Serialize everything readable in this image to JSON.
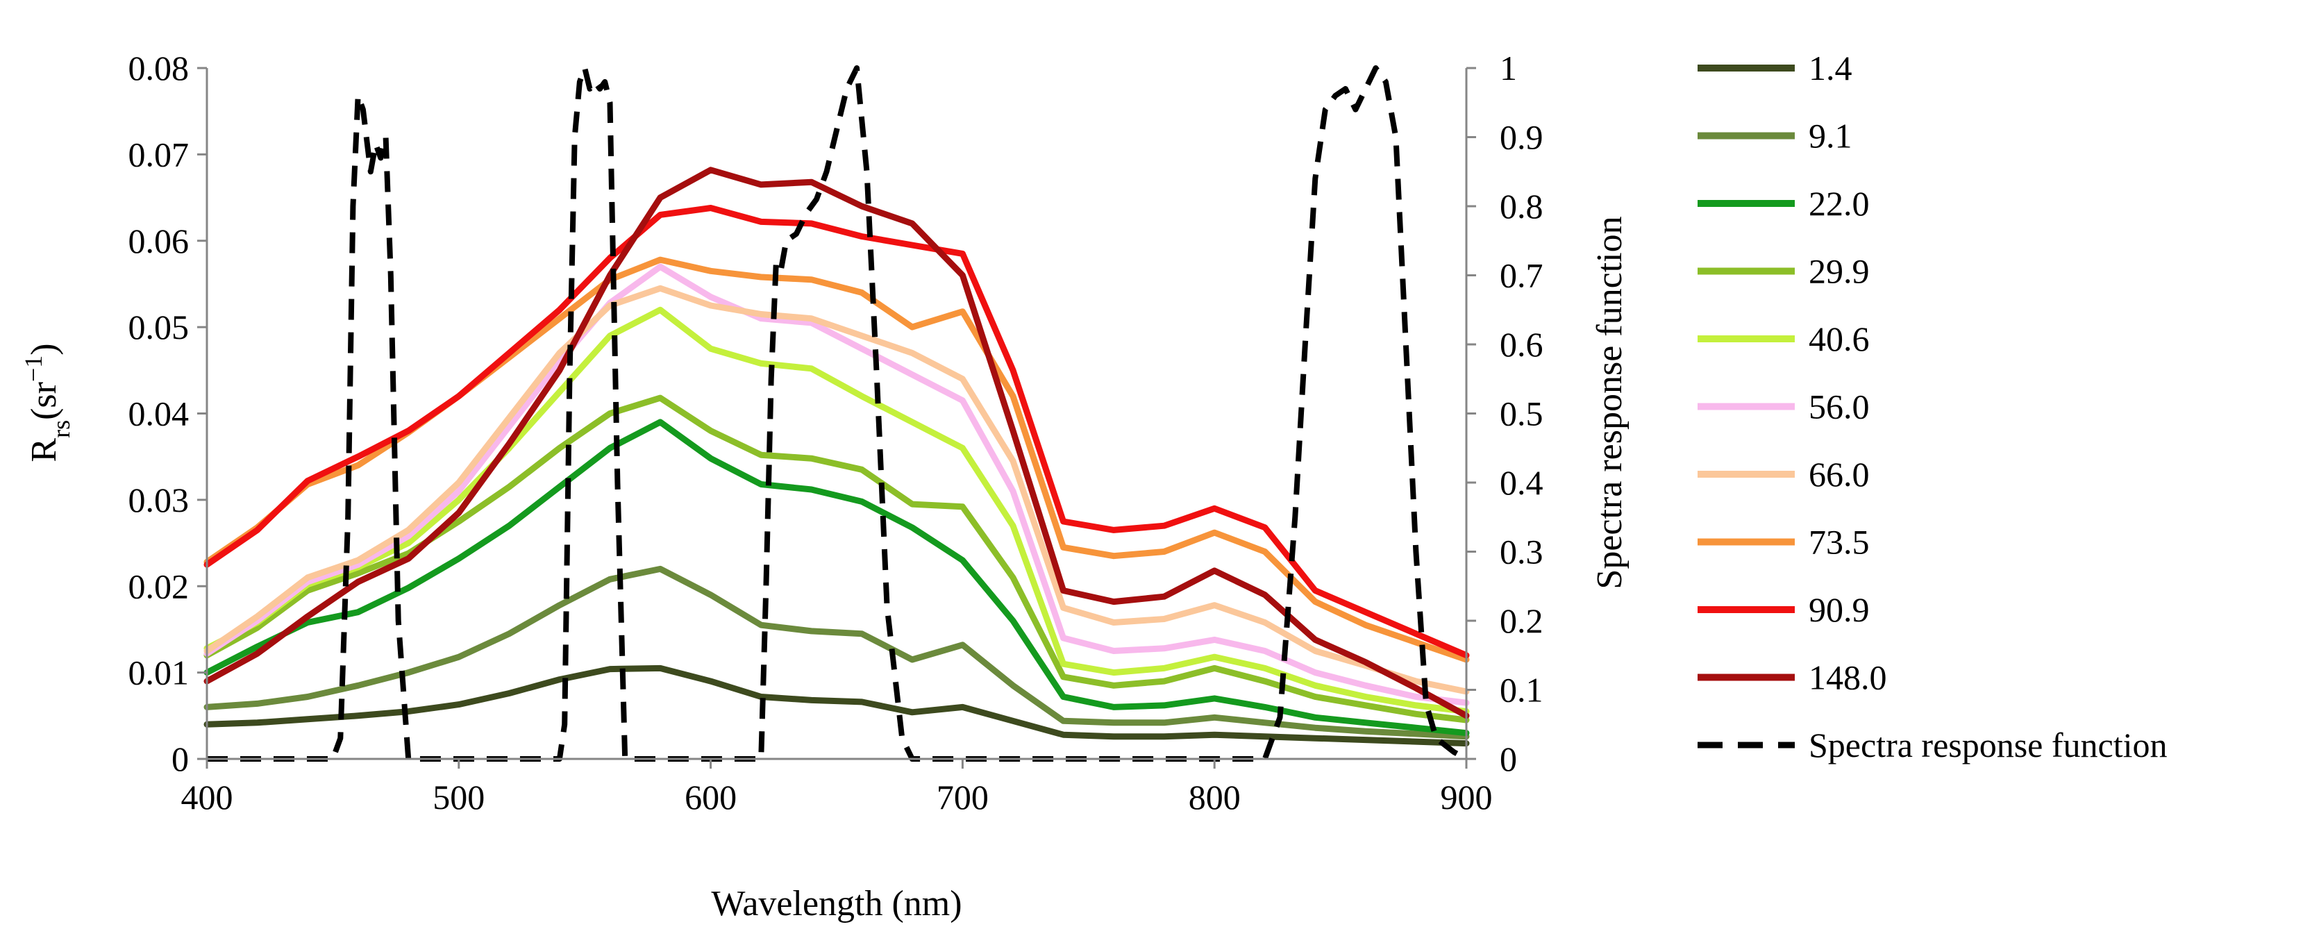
{
  "chart_data": {
    "type": "line",
    "title": "",
    "xlabel": "Wavelength (nm)",
    "ylabel": {
      "main": "R",
      "sub": "rs",
      "unit_open": "(sr",
      "unit_sup": "−1",
      "unit_close": ")"
    },
    "y2label": "Spectra response function",
    "xlim": [
      400,
      900
    ],
    "ylim": [
      0,
      0.08
    ],
    "y2lim": [
      0,
      1
    ],
    "xticks": [
      "400",
      "500",
      "600",
      "700",
      "800",
      "900"
    ],
    "yticks": [
      "0",
      "0.01",
      "0.02",
      "0.03",
      "0.04",
      "0.05",
      "0.06",
      "0.07",
      "0.08"
    ],
    "y2ticks": [
      "0",
      "0.1",
      "0.2",
      "0.3",
      "0.4",
      "0.5",
      "0.6",
      "0.7",
      "0.8",
      "0.9",
      "1"
    ],
    "grid": false,
    "legend_position": "right",
    "x": [
      400,
      420,
      440,
      460,
      480,
      500,
      520,
      540,
      560,
      580,
      600,
      620,
      640,
      660,
      680,
      700,
      720,
      740,
      760,
      780,
      800,
      820,
      840,
      860,
      880,
      900
    ],
    "series": [
      {
        "name": "1.4",
        "color": "#3d4a1e",
        "values": [
          0.004,
          0.0042,
          0.0046,
          0.005,
          0.0055,
          0.0063,
          0.0076,
          0.0092,
          0.0104,
          0.0105,
          0.009,
          0.0072,
          0.0068,
          0.0066,
          0.0054,
          0.006,
          0.0044,
          0.0028,
          0.0026,
          0.0026,
          0.0028,
          0.0026,
          0.0024,
          0.0022,
          0.002,
          0.0018
        ]
      },
      {
        "name": "9.1",
        "color": "#6b8a3c",
        "values": [
          0.006,
          0.0064,
          0.0072,
          0.0085,
          0.01,
          0.0118,
          0.0145,
          0.0178,
          0.0208,
          0.022,
          0.019,
          0.0155,
          0.0148,
          0.0145,
          0.0115,
          0.0132,
          0.0085,
          0.0044,
          0.0042,
          0.0042,
          0.0048,
          0.0042,
          0.0036,
          0.0032,
          0.0029,
          0.0026
        ]
      },
      {
        "name": "22.0",
        "color": "#149a1e",
        "values": [
          0.01,
          0.013,
          0.0158,
          0.017,
          0.0198,
          0.0232,
          0.027,
          0.0315,
          0.036,
          0.039,
          0.0348,
          0.0318,
          0.0312,
          0.0298,
          0.0268,
          0.023,
          0.016,
          0.0072,
          0.006,
          0.0062,
          0.007,
          0.006,
          0.0048,
          0.0042,
          0.0036,
          0.003
        ]
      },
      {
        "name": "29.9",
        "color": "#8cbe28",
        "values": [
          0.012,
          0.0152,
          0.0195,
          0.0215,
          0.0238,
          0.0275,
          0.0315,
          0.036,
          0.04,
          0.0418,
          0.038,
          0.0352,
          0.0348,
          0.0335,
          0.0295,
          0.0292,
          0.021,
          0.0095,
          0.0085,
          0.009,
          0.0105,
          0.009,
          0.0072,
          0.0062,
          0.0052,
          0.0045
        ]
      },
      {
        "name": "40.6",
        "color": "#c4f03c",
        "values": [
          0.0128,
          0.0158,
          0.0202,
          0.0222,
          0.025,
          0.03,
          0.036,
          0.0425,
          0.049,
          0.052,
          0.0475,
          0.0458,
          0.0452,
          0.042,
          0.039,
          0.036,
          0.027,
          0.011,
          0.01,
          0.0105,
          0.0118,
          0.0105,
          0.0085,
          0.0072,
          0.0062,
          0.0055
        ]
      },
      {
        "name": "56.0",
        "color": "#f8b8ec",
        "values": [
          0.0122,
          0.016,
          0.0205,
          0.0225,
          0.0258,
          0.031,
          0.0385,
          0.046,
          0.0528,
          0.057,
          0.0535,
          0.051,
          0.0505,
          0.0475,
          0.0445,
          0.0415,
          0.031,
          0.014,
          0.0125,
          0.0128,
          0.0138,
          0.0125,
          0.01,
          0.0085,
          0.0072,
          0.0065
        ]
      },
      {
        "name": "66.0",
        "color": "#fbc79a",
        "values": [
          0.0125,
          0.0165,
          0.021,
          0.023,
          0.0265,
          0.032,
          0.0395,
          0.047,
          0.0525,
          0.0545,
          0.0525,
          0.0515,
          0.051,
          0.049,
          0.047,
          0.044,
          0.0345,
          0.0175,
          0.0158,
          0.0162,
          0.0178,
          0.0158,
          0.0125,
          0.0108,
          0.009,
          0.0078
        ]
      },
      {
        "name": "73.5",
        "color": "#f7943a",
        "values": [
          0.0228,
          0.0268,
          0.0318,
          0.034,
          0.0378,
          0.042,
          0.0465,
          0.051,
          0.0555,
          0.0578,
          0.0565,
          0.0558,
          0.0555,
          0.054,
          0.05,
          0.0518,
          0.042,
          0.0245,
          0.0235,
          0.024,
          0.0262,
          0.024,
          0.0182,
          0.0155,
          0.0135,
          0.0115
        ]
      },
      {
        "name": "90.9",
        "color": "#f01010",
        "values": [
          0.0225,
          0.0265,
          0.0322,
          0.035,
          0.038,
          0.042,
          0.047,
          0.052,
          0.058,
          0.063,
          0.0638,
          0.0622,
          0.062,
          0.0605,
          0.0595,
          0.0585,
          0.045,
          0.0275,
          0.0265,
          0.027,
          0.029,
          0.0268,
          0.0195,
          0.017,
          0.0145,
          0.012
        ]
      },
      {
        "name": "148.0",
        "color": "#a50e0e",
        "values": [
          0.009,
          0.0122,
          0.0165,
          0.0205,
          0.0232,
          0.0285,
          0.0365,
          0.045,
          0.056,
          0.065,
          0.0682,
          0.0665,
          0.0668,
          0.064,
          0.062,
          0.056,
          0.038,
          0.0195,
          0.0182,
          0.0188,
          0.0218,
          0.019,
          0.0138,
          0.0112,
          0.0082,
          0.005
        ]
      }
    ],
    "response_series": {
      "name": "Spectra response function",
      "style": "dashed",
      "color": "#000000",
      "x": [
        400,
        450,
        453,
        456,
        458,
        460,
        462,
        465,
        467,
        469,
        471,
        473,
        476,
        480,
        540,
        542,
        544,
        546,
        548,
        550,
        552,
        554,
        556,
        558,
        560,
        563,
        566,
        620,
        622,
        624,
        626,
        628,
        630,
        634,
        638,
        642,
        646,
        650,
        654,
        658,
        662,
        666,
        670,
        676,
        680,
        820,
        826,
        832,
        836,
        840,
        844,
        848,
        852,
        856,
        860,
        864,
        868,
        872,
        876,
        880,
        884,
        888,
        895,
        900
      ],
      "values": [
        0,
        0,
        0.03,
        0.35,
        0.8,
        0.96,
        0.94,
        0.85,
        0.89,
        0.87,
        0.9,
        0.7,
        0.2,
        0,
        0,
        0.05,
        0.55,
        0.9,
        0.98,
        1.0,
        0.97,
        0.98,
        0.97,
        0.98,
        0.95,
        0.4,
        0,
        0,
        0.25,
        0.55,
        0.72,
        0.71,
        0.75,
        0.76,
        0.79,
        0.81,
        0.85,
        0.91,
        0.97,
        1.0,
        0.85,
        0.55,
        0.22,
        0.03,
        0,
        0,
        0.06,
        0.35,
        0.6,
        0.84,
        0.94,
        0.96,
        0.97,
        0.94,
        0.97,
        1.0,
        0.98,
        0.9,
        0.6,
        0.3,
        0.08,
        0.03,
        0.01,
        0
      ]
    }
  }
}
